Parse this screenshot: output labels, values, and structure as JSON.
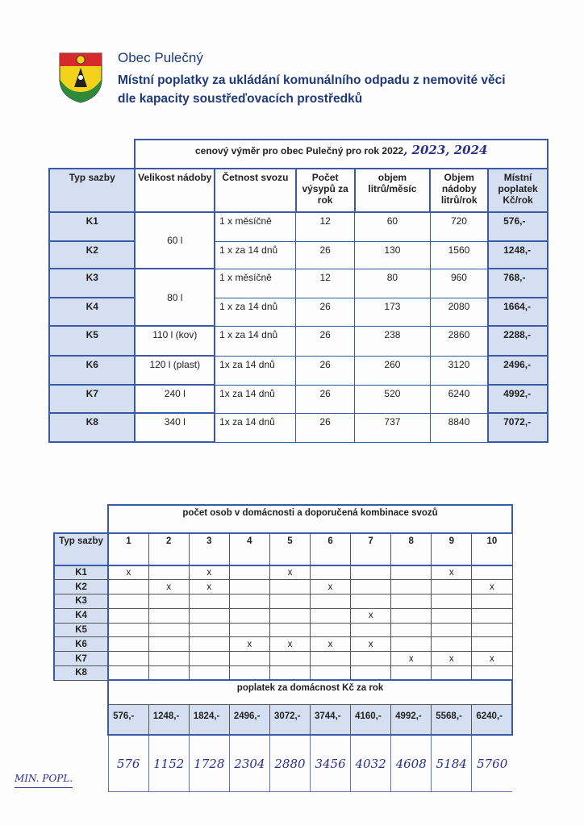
{
  "header": {
    "municipality": "Obec Pulečný",
    "subtitle_line1": "Místní poplatky za ukládání komunálního odpadu z nemovité věci",
    "subtitle_line2": "dle kapacity soustřeďovacích prostředků",
    "logo_icon": "coat-of-arms-icon",
    "colors": {
      "title": "#1f3a7a",
      "table_border": "#3a5aa8",
      "header_fill": "#d5dff2",
      "handwriting": "#2a2f8a"
    }
  },
  "table1": {
    "title": "cenový výměr pro obec Pulečný pro rok 2022",
    "title_handwritten": ", 2023, 2024",
    "columns": [
      "Typ sazby",
      "Velikost nádoby",
      "Četnost svozu",
      "Počet výsypů za rok",
      "objem litrů/měsíc",
      "Objem nádoby litrů/rok",
      "Místní poplatek Kč/rok"
    ],
    "rows": [
      {
        "typ": "K1",
        "size": "60 l",
        "freq": "1 x měsíčně",
        "count": "12",
        "monthly": "60",
        "yearly": "720",
        "fee": "576,-"
      },
      {
        "typ": "K2",
        "size": "",
        "freq": "1 x za 14 dnů",
        "count": "26",
        "monthly": "130",
        "yearly": "1560",
        "fee": "1248,-"
      },
      {
        "typ": "K3",
        "size": "80 l",
        "freq": "1 x měsíčně",
        "count": "12",
        "monthly": "80",
        "yearly": "960",
        "fee": "768,-"
      },
      {
        "typ": "K4",
        "size": "",
        "freq": "1 x za 14 dnů",
        "count": "26",
        "monthly": "173",
        "yearly": "2080",
        "fee": "1664,-"
      },
      {
        "typ": "K5",
        "size": "110 l (kov)",
        "freq": "1 x za 14 dnů",
        "count": "26",
        "monthly": "238",
        "yearly": "2860",
        "fee": "2288,-"
      },
      {
        "typ": "K6",
        "size": "120 l (plast)",
        "freq": "1x za 14 dnů",
        "count": "26",
        "monthly": "260",
        "yearly": "3120",
        "fee": "2496,-"
      },
      {
        "typ": "K7",
        "size": "240 l",
        "freq": "1x za 14 dnů",
        "count": "26",
        "monthly": "520",
        "yearly": "6240",
        "fee": "4992,-"
      },
      {
        "typ": "K8",
        "size": "340 l",
        "freq": "1x za 14 dnů",
        "count": "26",
        "monthly": "737",
        "yearly": "8840",
        "fee": "7072,-"
      }
    ]
  },
  "table2": {
    "title": "počet osob v domácnosti a doporučená kombinace svozů",
    "typ_header": "Typ sazby",
    "persons": [
      "1",
      "2",
      "3",
      "4",
      "5",
      "6",
      "7",
      "8",
      "9",
      "10"
    ],
    "rows": [
      {
        "typ": "K1",
        "marks": [
          "x",
          "",
          "x",
          "",
          "x",
          "",
          "",
          "",
          "x",
          ""
        ]
      },
      {
        "typ": "K2",
        "marks": [
          "",
          "x",
          "x",
          "",
          "",
          "x",
          "",
          "",
          "",
          "x"
        ]
      },
      {
        "typ": "K3",
        "marks": [
          "",
          "",
          "",
          "",
          "",
          "",
          "",
          "",
          "",
          ""
        ]
      },
      {
        "typ": "K4",
        "marks": [
          "",
          "",
          "",
          "",
          "",
          "",
          "x",
          "",
          "",
          ""
        ]
      },
      {
        "typ": "K5",
        "marks": [
          "",
          "",
          "",
          "",
          "",
          "",
          "",
          "",
          "",
          ""
        ]
      },
      {
        "typ": "K6",
        "marks": [
          "",
          "",
          "",
          "x",
          "x",
          "x",
          "x",
          "",
          "",
          ""
        ]
      },
      {
        "typ": "K7",
        "marks": [
          "",
          "",
          "",
          "",
          "",
          "",
          "",
          "x",
          "x",
          "x"
        ]
      },
      {
        "typ": "K8",
        "marks": [
          "",
          "",
          "",
          "",
          "",
          "",
          "",
          "",
          "",
          ""
        ]
      }
    ],
    "fee_title": "poplatek za domácnost Kč za rok",
    "fees": [
      "576,-",
      "1248,-",
      "1824,-",
      "2496,-",
      "3072,-",
      "3744,-",
      "4160,-",
      "4992,-",
      "5568,-",
      "6240,-"
    ],
    "handwritten_fees": [
      "576",
      "1152",
      "1728",
      "2304",
      "2880",
      "3456",
      "4032",
      "4608",
      "5184",
      "5760"
    ],
    "handwritten_label": "MIN. POPL."
  }
}
